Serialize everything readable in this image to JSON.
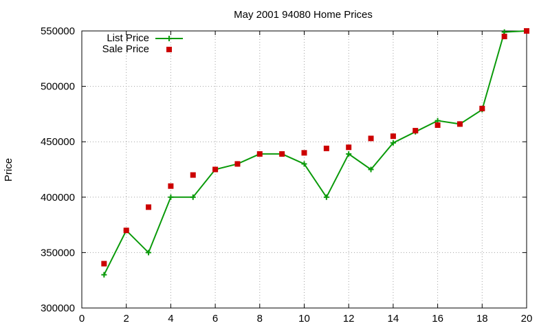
{
  "chart_data": {
    "type": "line",
    "title": "May 2001 94080 Home Prices",
    "xlabel": "",
    "ylabel": "Price",
    "xlim": [
      0,
      20
    ],
    "ylim": [
      300000,
      550000
    ],
    "x_ticks": [
      0,
      2,
      4,
      6,
      8,
      10,
      12,
      14,
      16,
      18,
      20
    ],
    "y_ticks": [
      300000,
      350000,
      400000,
      450000,
      500000,
      550000
    ],
    "grid": true,
    "legend_position": "top-left",
    "x": [
      1,
      2,
      3,
      4,
      5,
      6,
      7,
      8,
      9,
      10,
      11,
      12,
      13,
      14,
      15,
      16,
      17,
      18,
      19,
      20
    ],
    "series": [
      {
        "name": "List Price",
        "style": "line-with-plus-markers",
        "color": "#0a9a0a",
        "values": [
          330000,
          370000,
          350000,
          400000,
          400000,
          425000,
          430000,
          439000,
          439000,
          430000,
          400000,
          439000,
          425000,
          449000,
          459000,
          469000,
          466000,
          479000,
          549000,
          550000
        ]
      },
      {
        "name": "Sale Price",
        "style": "square-markers",
        "color": "#cc0000",
        "values": [
          340000,
          370000,
          391000,
          410000,
          420000,
          425000,
          430000,
          439000,
          439000,
          440000,
          444000,
          445000,
          453000,
          455000,
          460000,
          465000,
          466000,
          480000,
          545000,
          550000
        ]
      }
    ]
  }
}
